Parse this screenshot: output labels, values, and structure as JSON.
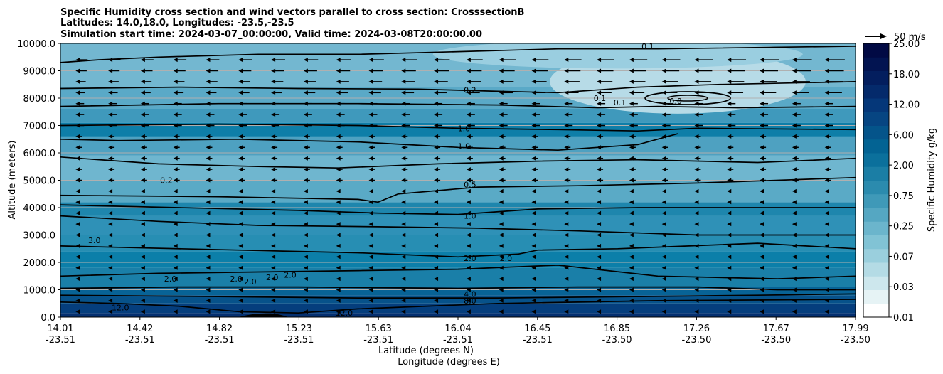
{
  "chart_data": {
    "type": "contour-cross-section",
    "title": [
      "Specific Humidity cross section and wind vectors parallel to cross section: CrosssectionB",
      "Latitudes: 14.0,18.0, Longitudes: -23.5,-23.5",
      "Simulation start time: 2024-03-07_00:00:00, Valid time: 2024-03-08T20:00:00.00"
    ],
    "ylabel": "Altitude (meters)",
    "xlabel_lat": "Latitude (degrees N)",
    "xlabel_lon": "Longitude (degrees E)",
    "ylim": [
      0,
      10000
    ],
    "yticks": [
      "0.0",
      "1000.0",
      "2000.0",
      "3000.0",
      "4000.0",
      "5000.0",
      "6000.0",
      "7000.0",
      "8000.0",
      "9000.0",
      "10000.0"
    ],
    "xticks_lat": [
      "14.01",
      "14.42",
      "14.82",
      "15.23",
      "15.63",
      "16.04",
      "16.45",
      "16.85",
      "17.26",
      "17.67",
      "17.99"
    ],
    "xticks_lon": [
      "-23.51",
      "-23.51",
      "-23.51",
      "-23.51",
      "-23.51",
      "-23.51",
      "-23.51",
      "-23.50",
      "-23.50",
      "-23.50",
      "-23.50"
    ],
    "colorbar": {
      "label": "Specific Humidity g/kg",
      "ticks": [
        "0.01",
        "0.03",
        "0.07",
        "0.25",
        "0.75",
        "2.00",
        "6.00",
        "12.00",
        "18.00",
        "25.00"
      ],
      "colors": [
        "#ffffff",
        "#e6f3f5",
        "#cde7ed",
        "#b4dbe5",
        "#9acfdd",
        "#81c3d5",
        "#6bb5cc",
        "#55a7c2",
        "#3f99b8",
        "#2b8bae",
        "#1b7ea5",
        "#0b709c",
        "#036393",
        "#04548a",
        "#064582",
        "#053779",
        "#042a6b",
        "#031e5e",
        "#021451",
        "#010a44"
      ]
    },
    "quiver_key": "50 m/s",
    "wind": "northward-parallel component mostly negative (southward), strongest above 8000 m",
    "contour_labels": [
      {
        "text": "0.1",
        "lat": 16.95,
        "alt": 9900
      },
      {
        "text": "0.2",
        "lat": 16.06,
        "alt": 8300
      },
      {
        "text": "0.1",
        "lat": 16.71,
        "alt": 8000
      },
      {
        "text": "0.1",
        "lat": 16.81,
        "alt": 7850
      },
      {
        "text": "0.0",
        "lat": 17.09,
        "alt": 7900
      },
      {
        "text": "1.0",
        "lat": 16.03,
        "alt": 6900
      },
      {
        "text": "1.0",
        "lat": 16.03,
        "alt": 6250
      },
      {
        "text": "0.2",
        "lat": 14.54,
        "alt": 5000
      },
      {
        "text": "0.5",
        "lat": 16.06,
        "alt": 4850
      },
      {
        "text": "1.0",
        "lat": 16.06,
        "alt": 3700
      },
      {
        "text": "3.0",
        "lat": 14.18,
        "alt": 2800
      },
      {
        "text": "2.0",
        "lat": 16.06,
        "alt": 2150
      },
      {
        "text": "2.0",
        "lat": 16.24,
        "alt": 2150
      },
      {
        "text": "2.0",
        "lat": 14.56,
        "alt": 1400
      },
      {
        "text": "2.0",
        "lat": 14.89,
        "alt": 1400
      },
      {
        "text": "2.0",
        "lat": 14.96,
        "alt": 1300
      },
      {
        "text": "2.0",
        "lat": 15.07,
        "alt": 1450
      },
      {
        "text": "2.0",
        "lat": 15.16,
        "alt": 1550
      },
      {
        "text": "4.0",
        "lat": 16.06,
        "alt": 850
      },
      {
        "text": "8.0",
        "lat": 16.06,
        "alt": 600
      },
      {
        "text": "12.0",
        "lat": 14.31,
        "alt": 350
      },
      {
        "text": "12.0",
        "lat": 15.43,
        "alt": 150
      }
    ]
  }
}
